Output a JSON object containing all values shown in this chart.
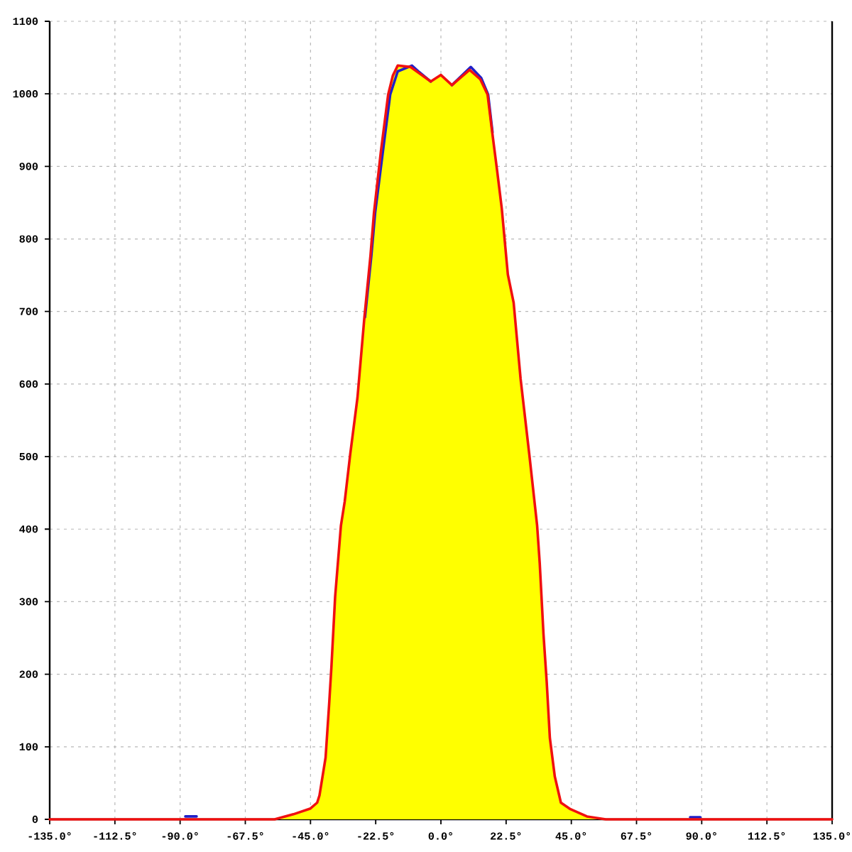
{
  "chart_data": {
    "type": "line",
    "xlim": [
      -135,
      135
    ],
    "ylim": [
      0,
      1100
    ],
    "xticks": [
      {
        "value": -135,
        "label": "-135.0°"
      },
      {
        "value": -112.5,
        "label": "-112.5°"
      },
      {
        "value": -90,
        "label": "-90.0°"
      },
      {
        "value": -67.5,
        "label": "-67.5°"
      },
      {
        "value": -45,
        "label": "-45.0°"
      },
      {
        "value": -22.5,
        "label": "-22.5°"
      },
      {
        "value": 0,
        "label": "0.0°"
      },
      {
        "value": 22.5,
        "label": "22.5°"
      },
      {
        "value": 45,
        "label": "45.0°"
      },
      {
        "value": 67.5,
        "label": "67.5°"
      },
      {
        "value": 90,
        "label": "90.0°"
      },
      {
        "value": 112.5,
        "label": "112.5°"
      },
      {
        "value": 135,
        "label": "135.0°"
      }
    ],
    "yticks": [
      0,
      100,
      200,
      300,
      400,
      500,
      600,
      700,
      800,
      900,
      1000,
      1100
    ],
    "grid": true,
    "marker": "none",
    "line_style": "solid",
    "series": [
      {
        "type": "area",
        "color": "#ffff00",
        "x": [
          -57.4,
          -50.9,
          -45,
          -42.7,
          -41.9,
          -39.8,
          -38.6,
          -37.8,
          -36.5,
          -34.5,
          -33.2,
          -31.3,
          -28.8,
          -26.4,
          -24.3,
          -23.1,
          -20.7,
          -18.2,
          -16.6,
          -14.9,
          -10.5,
          -3.5,
          0,
          3.8,
          9.9,
          13.6,
          16.1,
          17.7,
          19.4,
          21.0,
          23.1,
          25.1,
          27.5,
          30.5,
          33.2,
          34.1,
          35.4,
          36.5,
          37.6,
          39.3,
          41.4,
          44.7,
          50.4,
          56.9
        ],
        "values": [
          0,
          7,
          15,
          23,
          33,
          85,
          157,
          209,
          307,
          405,
          438,
          503,
          581,
          692,
          777,
          836,
          921,
          999,
          1025,
          1039,
          1037,
          1017,
          1026,
          1012,
          1033,
          1020,
          999,
          947,
          894,
          842,
          751,
          712,
          607,
          503,
          405,
          353,
          255,
          190,
          112,
          59,
          23,
          14,
          4,
          0
        ]
      },
      {
        "color": "#2020c8",
        "x": [
          -88.2,
          -84.3,
          -57.4,
          -26.2,
          -24.0,
          -22.7,
          -20.0,
          -17.5,
          -14.9,
          -10.0,
          -7.5,
          -3.5,
          0,
          3.8,
          10.3,
          13.9,
          16.3,
          17.8,
          56.9,
          86,
          89.5
        ],
        "values": [
          4,
          4,
          null,
          692,
          777,
          836,
          921,
          999,
          1031,
          1039,
          1030,
          1017,
          null,
          1012,
          1037,
          1022,
          999,
          947,
          null,
          3,
          3
        ]
      },
      {
        "color": "#f01010",
        "x": [
          -135,
          -57.4,
          -50.9,
          -45,
          -42.7,
          -41.9,
          -39.8,
          -38.6,
          -37.8,
          -36.5,
          -34.5,
          -33.2,
          -31.3,
          -28.8,
          -26.4,
          -24.3,
          -23.1,
          -20.7,
          -18.2,
          -16.6,
          -14.9,
          -10.5,
          -3.5,
          0,
          3.8,
          9.9,
          13.6,
          16.1,
          17.7,
          19.4,
          21.0,
          23.1,
          25.1,
          27.5,
          30.5,
          33.2,
          34.1,
          35.4,
          36.5,
          37.6,
          39.3,
          41.4,
          44.7,
          50.4,
          56.9,
          135
        ],
        "values": [
          0,
          0,
          7,
          15,
          23,
          33,
          85,
          157,
          209,
          307,
          405,
          438,
          503,
          581,
          692,
          777,
          836,
          921,
          999,
          1025,
          1039,
          1037,
          1017,
          1026,
          1012,
          1033,
          1020,
          999,
          947,
          894,
          842,
          751,
          712,
          607,
          503,
          405,
          353,
          255,
          190,
          112,
          59,
          23,
          14,
          4,
          0,
          0
        ]
      }
    ]
  }
}
